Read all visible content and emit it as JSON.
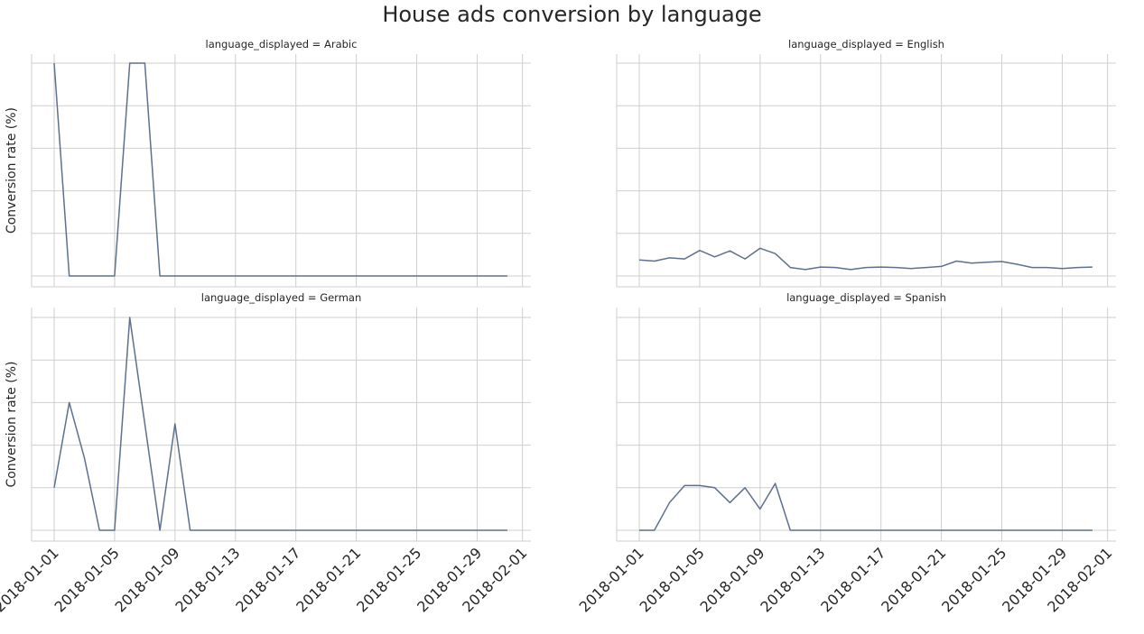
{
  "figure": {
    "title": "House ads conversion by language"
  },
  "colors": {
    "line": "#5e708d",
    "grid": "#cfcfcf",
    "text": "#262626"
  },
  "chart_data": [
    {
      "type": "line",
      "title": "language_displayed = Arabic",
      "xlabel": "",
      "ylabel": "Conversion rate (%)",
      "grid": true,
      "x": [
        "2018-01-01",
        "2018-01-02",
        "2018-01-03",
        "2018-01-04",
        "2018-01-05",
        "2018-01-06",
        "2018-01-07",
        "2018-01-08",
        "2018-01-09",
        "2018-01-10",
        "2018-01-11",
        "2018-01-12",
        "2018-01-13",
        "2018-01-14",
        "2018-01-15",
        "2018-01-16",
        "2018-01-17",
        "2018-01-18",
        "2018-01-19",
        "2018-01-20",
        "2018-01-21",
        "2018-01-22",
        "2018-01-23",
        "2018-01-24",
        "2018-01-25",
        "2018-01-26",
        "2018-01-27",
        "2018-01-28",
        "2018-01-29",
        "2018-01-30",
        "2018-01-31"
      ],
      "values": [
        1.0,
        0,
        0,
        0,
        0,
        1.0,
        1.0,
        0,
        0,
        0,
        0,
        0,
        0,
        0,
        0,
        0,
        0,
        0,
        0,
        0,
        0,
        0,
        0,
        0,
        0,
        0,
        0,
        0,
        0,
        0,
        0
      ],
      "xticks": [
        "2018-01-01",
        "2018-01-05",
        "2018-01-09",
        "2018-01-13",
        "2018-01-17",
        "2018-01-21",
        "2018-01-25",
        "2018-01-29",
        "2018-02-01"
      ]
    },
    {
      "type": "line",
      "title": "language_displayed = English",
      "xlabel": "",
      "ylabel": "",
      "grid": true,
      "x": [
        "2018-01-01",
        "2018-01-02",
        "2018-01-03",
        "2018-01-04",
        "2018-01-05",
        "2018-01-06",
        "2018-01-07",
        "2018-01-08",
        "2018-01-09",
        "2018-01-10",
        "2018-01-11",
        "2018-01-12",
        "2018-01-13",
        "2018-01-14",
        "2018-01-15",
        "2018-01-16",
        "2018-01-17",
        "2018-01-18",
        "2018-01-19",
        "2018-01-20",
        "2018-01-21",
        "2018-01-22",
        "2018-01-23",
        "2018-01-24",
        "2018-01-25",
        "2018-01-26",
        "2018-01-27",
        "2018-01-28",
        "2018-01-29",
        "2018-01-30",
        "2018-01-31"
      ],
      "values": [
        0.075,
        0.07,
        0.085,
        0.08,
        0.12,
        0.09,
        0.118,
        0.08,
        0.13,
        0.105,
        0.04,
        0.03,
        0.042,
        0.04,
        0.03,
        0.04,
        0.042,
        0.04,
        0.035,
        0.04,
        0.045,
        0.07,
        0.06,
        0.065,
        0.068,
        0.055,
        0.04,
        0.04,
        0.035,
        0.04,
        0.042
      ],
      "xticks": [
        "2018-01-01",
        "2018-01-05",
        "2018-01-09",
        "2018-01-13",
        "2018-01-17",
        "2018-01-21",
        "2018-01-25",
        "2018-01-29",
        "2018-02-01"
      ]
    },
    {
      "type": "line",
      "title": "language_displayed = German",
      "xlabel": "",
      "ylabel": "Conversion rate (%)",
      "grid": true,
      "x": [
        "2018-01-01",
        "2018-01-02",
        "2018-01-03",
        "2018-01-04",
        "2018-01-05",
        "2018-01-06",
        "2018-01-07",
        "2018-01-08",
        "2018-01-09",
        "2018-01-10",
        "2018-01-11",
        "2018-01-12",
        "2018-01-13",
        "2018-01-14",
        "2018-01-15",
        "2018-01-16",
        "2018-01-17",
        "2018-01-18",
        "2018-01-19",
        "2018-01-20",
        "2018-01-21",
        "2018-01-22",
        "2018-01-23",
        "2018-01-24",
        "2018-01-25",
        "2018-01-26",
        "2018-01-27",
        "2018-01-28",
        "2018-01-29",
        "2018-01-30",
        "2018-01-31"
      ],
      "values": [
        0.2,
        0.6,
        0.34,
        0,
        0,
        1.0,
        0.5,
        0,
        0.5,
        0,
        0,
        0,
        0,
        0,
        0,
        0,
        0,
        0,
        0,
        0,
        0,
        0,
        0,
        0,
        0,
        0,
        0,
        0,
        0,
        0,
        0
      ],
      "xticks": [
        "2018-01-01",
        "2018-01-05",
        "2018-01-09",
        "2018-01-13",
        "2018-01-17",
        "2018-01-21",
        "2018-01-25",
        "2018-01-29",
        "2018-02-01"
      ]
    },
    {
      "type": "line",
      "title": "language_displayed = Spanish",
      "xlabel": "",
      "ylabel": "",
      "grid": true,
      "x": [
        "2018-01-01",
        "2018-01-02",
        "2018-01-03",
        "2018-01-04",
        "2018-01-05",
        "2018-01-06",
        "2018-01-07",
        "2018-01-08",
        "2018-01-09",
        "2018-01-10",
        "2018-01-11",
        "2018-01-12",
        "2018-01-13",
        "2018-01-14",
        "2018-01-15",
        "2018-01-16",
        "2018-01-17",
        "2018-01-18",
        "2018-01-19",
        "2018-01-20",
        "2018-01-21",
        "2018-01-22",
        "2018-01-23",
        "2018-01-24",
        "2018-01-25",
        "2018-01-26",
        "2018-01-27",
        "2018-01-28",
        "2018-01-29",
        "2018-01-30",
        "2018-01-31"
      ],
      "values": [
        0,
        0,
        0.13,
        0.21,
        0.21,
        0.2,
        0.13,
        0.2,
        0.1,
        0.22,
        0,
        0,
        0,
        0,
        0,
        0,
        0,
        0,
        0,
        0,
        0,
        0,
        0,
        0,
        0,
        0,
        0,
        0,
        0,
        0,
        0
      ],
      "xticks": [
        "2018-01-01",
        "2018-01-05",
        "2018-01-09",
        "2018-01-13",
        "2018-01-17",
        "2018-01-21",
        "2018-01-25",
        "2018-01-29",
        "2018-02-01"
      ]
    }
  ]
}
